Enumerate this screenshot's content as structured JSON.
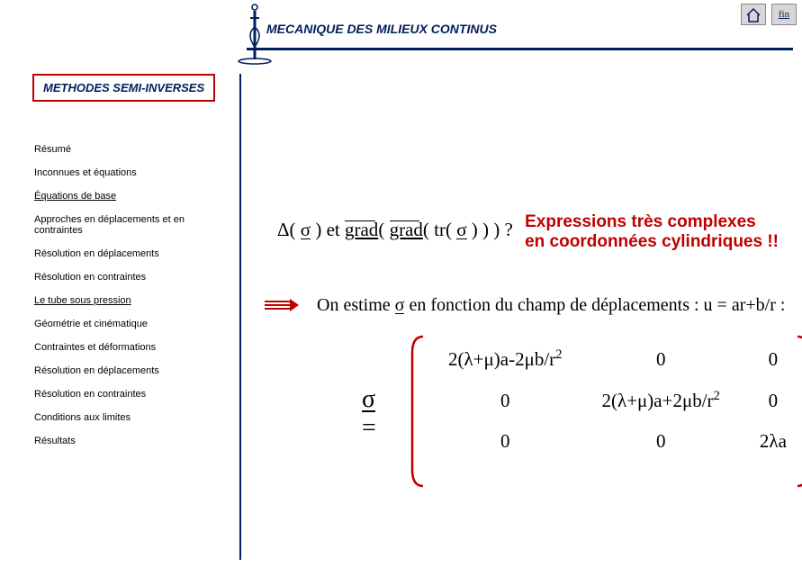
{
  "header": {
    "title": "MECANIQUE DES MILIEUX CONTINUS",
    "buttons": {
      "home_icon": "home-icon",
      "fin_label": "fin"
    }
  },
  "section_box": "METHODES SEMI-INVERSES",
  "sidebar": {
    "items": [
      {
        "label": "Résumé",
        "underline": false
      },
      {
        "label": "Inconnues et équations",
        "underline": false
      },
      {
        "label": "Équations de base",
        "underline": true
      },
      {
        "label": "Approches en déplacements et en contraintes",
        "underline": false
      },
      {
        "label": "Résolution en déplacements",
        "underline": false
      },
      {
        "label": "Résolution en contraintes",
        "underline": false
      },
      {
        "label": "Le tube sous pression",
        "underline": true
      },
      {
        "label": "Géométrie et cinématique",
        "underline": false
      },
      {
        "label": "Contraintes et déformations",
        "underline": false
      },
      {
        "label": "Résolution en déplacements",
        "underline": false
      },
      {
        "label": "Résolution en contraintes",
        "underline": false
      },
      {
        "label": "Conditions aux limites",
        "underline": false
      },
      {
        "label": "Résultats",
        "underline": false
      }
    ]
  },
  "formula1": {
    "prefix": "Δ( ",
    "sigma": "σ",
    "mid1": " ) et ",
    "grad1": "grad",
    "p1": "( ",
    "grad2": "grad",
    "p2": "( tr( ",
    "sigma2": "σ",
    "p3": " ) ) ) ?",
    "note1": "Expressions très complexes",
    "note2": "en coordonnées cylindriques !!"
  },
  "estimate": {
    "pre": "On estime ",
    "sigma": "σ",
    "post": " en fonction du champ de déplacements : u = ar+b/r :"
  },
  "matrix": {
    "lhs_sigma": "σ",
    "lhs_eq": " =",
    "cells": [
      [
        "2(λ+μ)a-2μb/r",
        "0",
        "0"
      ],
      [
        "0",
        "2(λ+μ)a+2μb/r",
        "0"
      ],
      [
        "0",
        "0",
        "2λa"
      ]
    ],
    "sup_targets": [
      "0,0",
      "1,1"
    ]
  },
  "colors": {
    "brand": "#001f5c",
    "red": "#c00000",
    "grey_btn": "#d7d7d7"
  }
}
